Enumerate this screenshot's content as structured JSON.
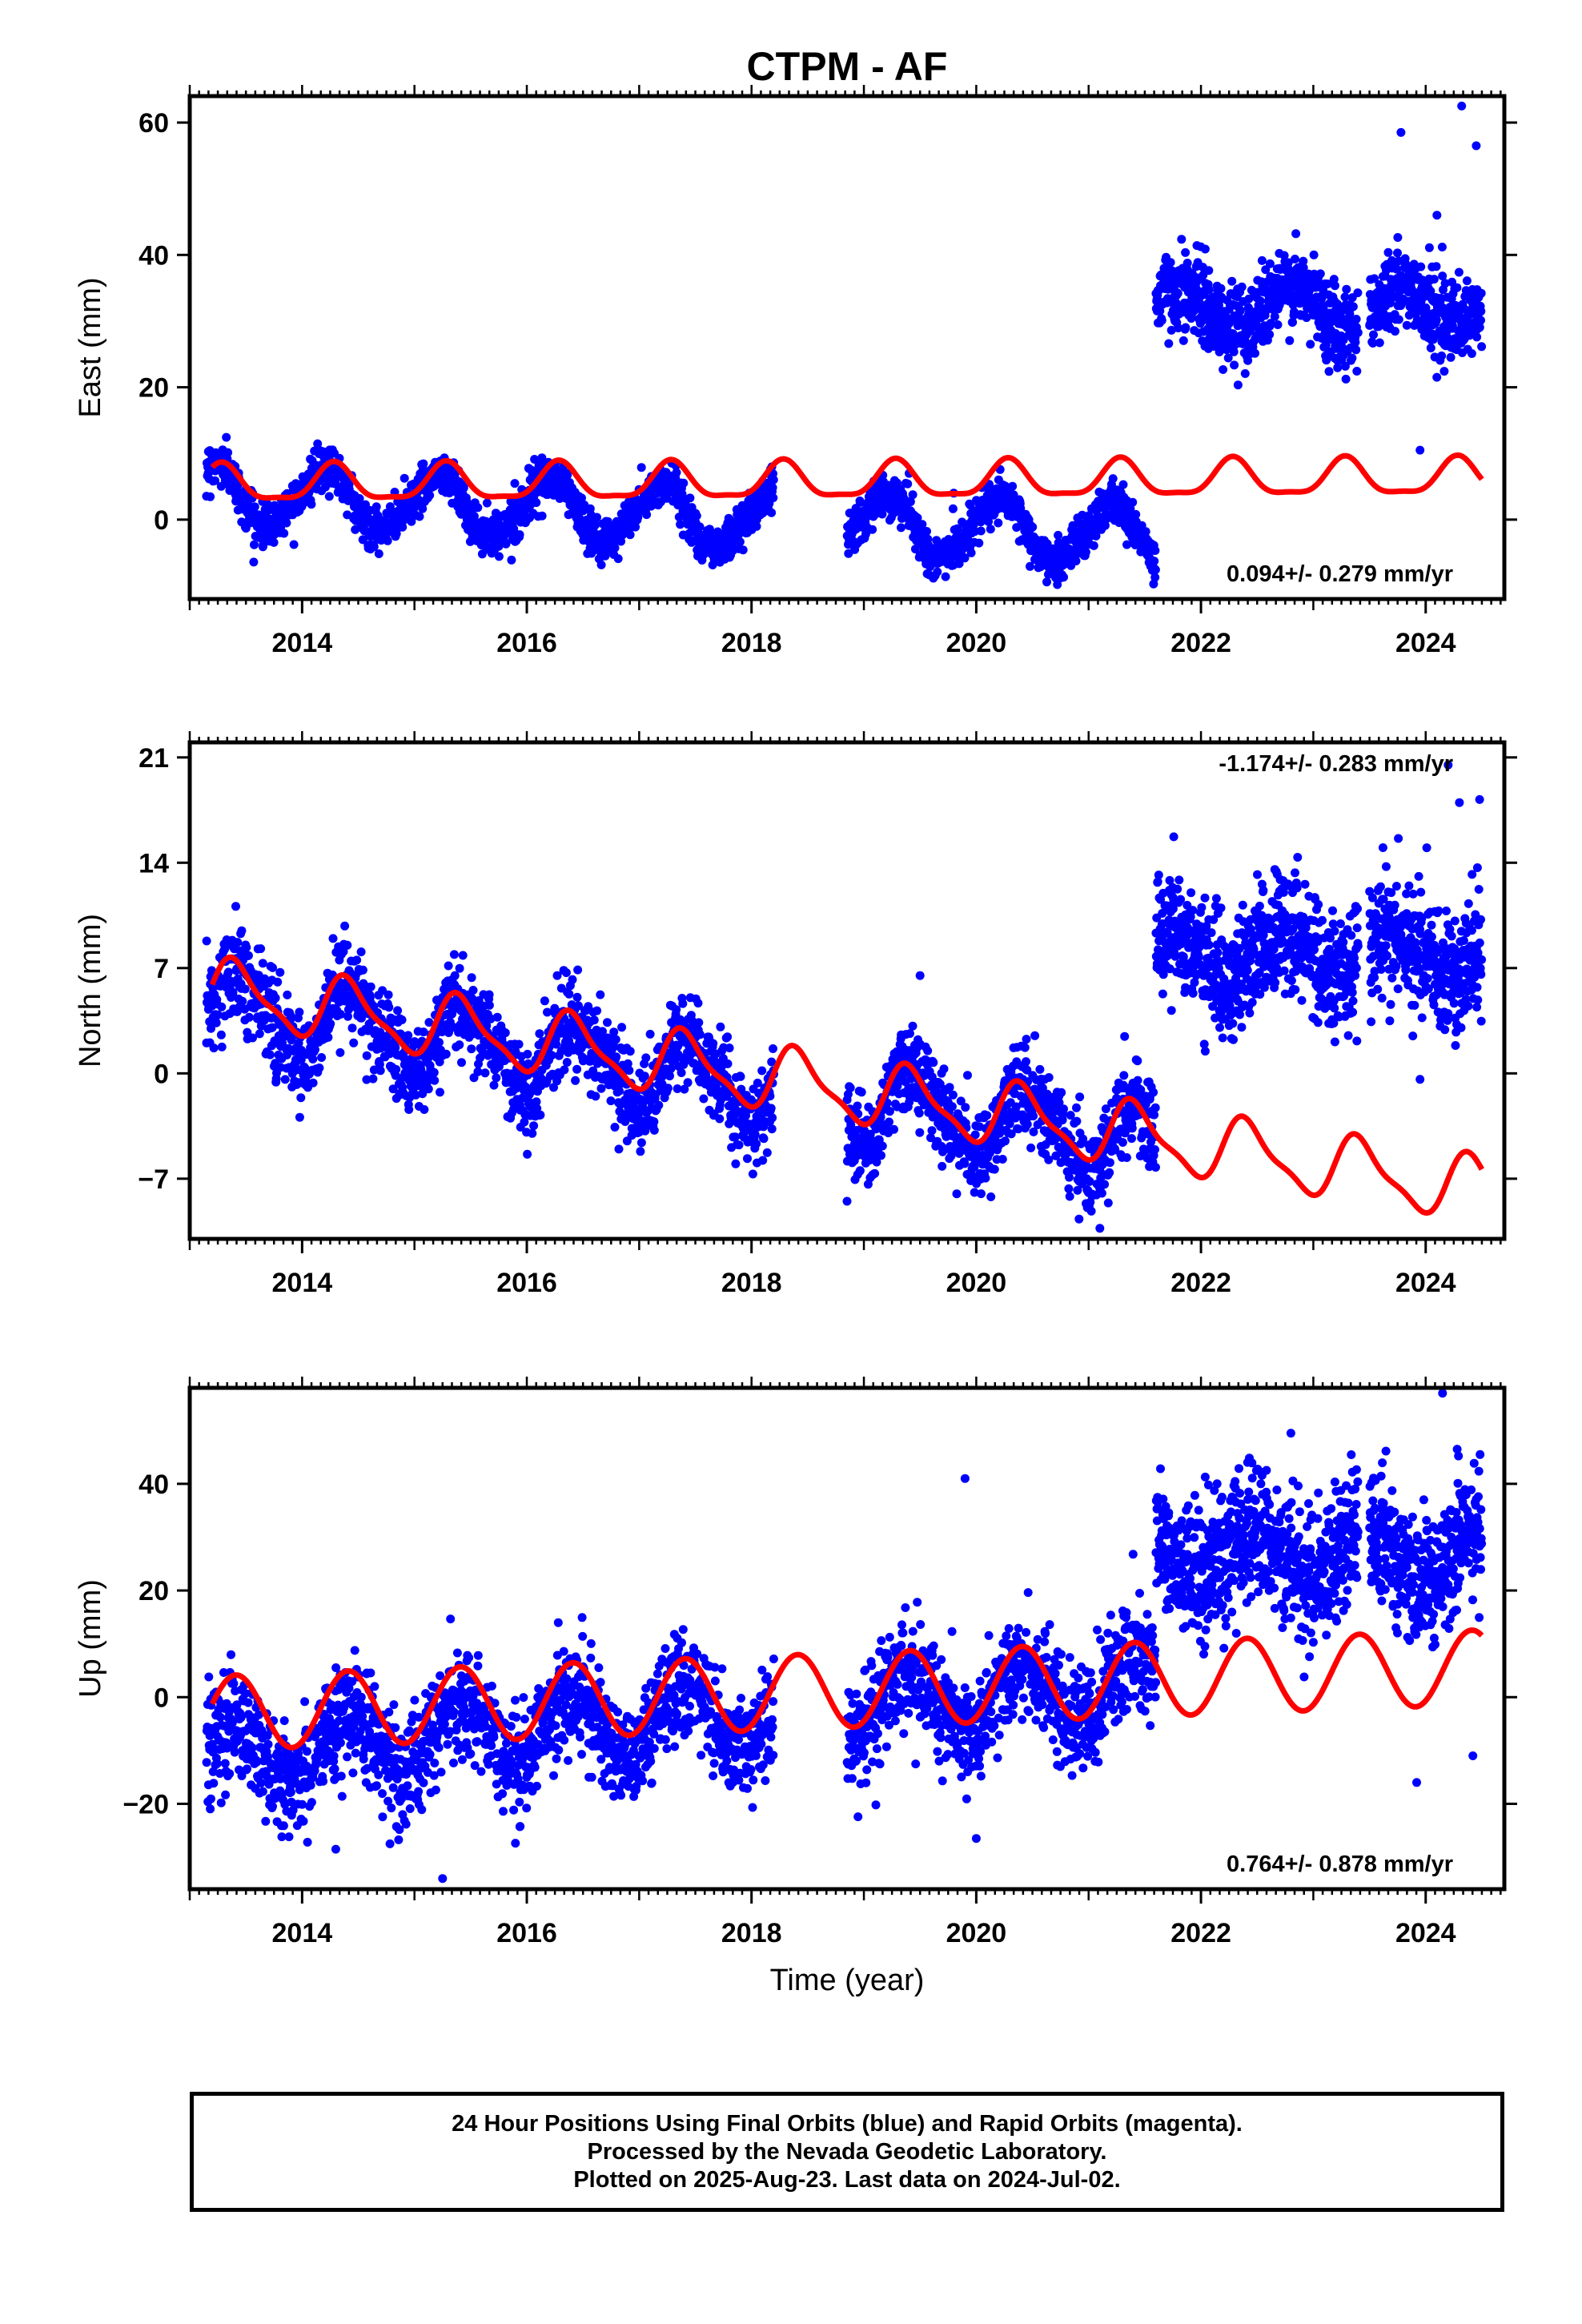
{
  "title": "CTPM - AF",
  "footer": {
    "line1": "24 Hour Positions Using Final Orbits (blue) and Rapid Orbits (magenta).",
    "line2": "Processed by the Nevada Geodetic Laboratory.",
    "line3": "Plotted on 2025-Aug-23. Last data on 2024-Jul-02."
  },
  "colors": {
    "data": "#0000ff",
    "model": "#ff0000",
    "axes": "#000000"
  },
  "chart_data": [
    {
      "type": "scatter",
      "component": "east",
      "ylabel": "East (mm)",
      "xlabel": "",
      "rate": "0.094+/- 0.279 mm/yr",
      "rate_position": "bottom-right",
      "xlim": [
        2013.0,
        2024.7
      ],
      "ylim": [
        -12,
        64
      ],
      "xticks": [
        2014,
        2016,
        2018,
        2020,
        2022,
        2024
      ],
      "yticks": [
        0,
        20,
        40,
        60
      ],
      "gaps": [
        [
          2018.2,
          2018.85
        ],
        [
          2021.6,
          2024.7
        ]
      ],
      "cluster": {
        "x": [
          2021.6,
          2024.5
        ],
        "mean": 32,
        "amp": 3,
        "phase": 0.3,
        "noise": 3,
        "outliers": [
          [
            2023.78,
            58.5
          ],
          [
            2024.32,
            62.5
          ],
          [
            2024.45,
            56.5
          ],
          [
            2024.1,
            46
          ],
          [
            2023.95,
            10.5
          ]
        ]
      },
      "series": [
        {
          "role": "observed",
          "x_start": 2013.15,
          "x_end": 2021.6,
          "points": 2600,
          "noise": 1.6,
          "offset": 4.0,
          "slope": -0.8,
          "ann": 4.5,
          "ann_phase": 1.57,
          "semi": 0.6,
          "semi_phase": 0.0,
          "outliers": [
            [
              2019.8,
              4.0
            ],
            [
              2013.2,
              9.5
            ]
          ]
        },
        {
          "role": "model",
          "x_start": 2013.2,
          "x_end": 2024.5,
          "offset": 5.2,
          "slope": 0.094,
          "ann": 2.7,
          "ann_phase": 1.05,
          "semi": 0.8,
          "semi_phase": 0.5
        }
      ]
    },
    {
      "type": "scatter",
      "component": "north",
      "ylabel": "North (mm)",
      "xlabel": "",
      "rate": "-1.174+/- 0.283 mm/yr",
      "rate_position": "top-right",
      "xlim": [
        2013.0,
        2024.7
      ],
      "ylim": [
        -11,
        22
      ],
      "xticks": [
        2014,
        2016,
        2018,
        2020,
        2022,
        2024
      ],
      "yticks": [
        -7,
        0,
        7,
        14,
        21
      ],
      "gaps": [
        [
          2018.2,
          2018.85
        ],
        [
          2021.6,
          2024.7
        ]
      ],
      "cluster": {
        "x": [
          2021.6,
          2024.5
        ],
        "mean": 8,
        "amp": 1.5,
        "phase": 0.8,
        "noise": 2.0,
        "outliers": [
          [
            2024.2,
            20.5
          ],
          [
            2024.3,
            18.0
          ],
          [
            2024.48,
            18.2
          ],
          [
            2023.62,
            15.0
          ],
          [
            2023.95,
            -0.4
          ]
        ]
      },
      "series": [
        {
          "role": "observed",
          "x_start": 2013.15,
          "x_end": 2021.6,
          "points": 2600,
          "noise": 1.5,
          "offset": 4.5,
          "slope": -1.1,
          "ann": 2.3,
          "ann_phase": 0.0,
          "semi": 0.5,
          "semi_phase": 0.3,
          "outliers": [
            [
              2013.15,
              8.8
            ],
            [
              2019.5,
              6.5
            ],
            [
              2018.85,
              -8.5
            ],
            [
              2021.1,
              -10.3
            ]
          ]
        },
        {
          "role": "model",
          "x_start": 2013.2,
          "x_end": 2024.5,
          "offset": 5.5,
          "slope": -1.174,
          "ann": 2.0,
          "ann_phase": 0.2,
          "semi": 0.6,
          "semi_phase": 0.0
        }
      ]
    },
    {
      "type": "scatter",
      "component": "up",
      "ylabel": "Up (mm)",
      "xlabel": "Time (year)",
      "rate": "0.764+/- 0.878 mm/yr",
      "rate_position": "bottom-right",
      "xlim": [
        2013.0,
        2024.7
      ],
      "ylim": [
        -36,
        58
      ],
      "xticks": [
        2014,
        2016,
        2018,
        2020,
        2022,
        2024
      ],
      "yticks": [
        -20,
        0,
        20,
        40
      ],
      "gaps": [
        [
          2018.2,
          2018.85
        ],
        [
          2021.6,
          2024.7
        ]
      ],
      "cluster": {
        "x": [
          2021.6,
          2024.5
        ],
        "mean": 27,
        "amp": 5,
        "phase": 2.5,
        "noise": 6,
        "outliers": [
          [
            2024.15,
            57.0
          ],
          [
            2024.28,
            46.5
          ],
          [
            2023.92,
            -16.0
          ],
          [
            2024.42,
            -11.0
          ],
          [
            2022.8,
            49.5
          ]
        ]
      },
      "series": [
        {
          "role": "observed",
          "x_start": 2013.15,
          "x_end": 2021.6,
          "points": 2600,
          "noise": 5.0,
          "offset": -11.0,
          "slope": 1.6,
          "ann": 6.0,
          "ann_phase": 0.3,
          "semi": 0.0,
          "semi_phase": 0.0,
          "outliers": [
            [
              2015.25,
              -34.0
            ],
            [
              2014.3,
              -28.5
            ],
            [
              2019.9,
              41.0
            ],
            [
              2020.0,
              -26.5
            ]
          ]
        },
        {
          "role": "model",
          "x_start": 2013.2,
          "x_end": 2024.5,
          "offset": -3.0,
          "slope": 0.764,
          "ann": 7.0,
          "ann_phase": 0.25,
          "semi": 0.0,
          "semi_phase": 0.0
        }
      ]
    }
  ]
}
